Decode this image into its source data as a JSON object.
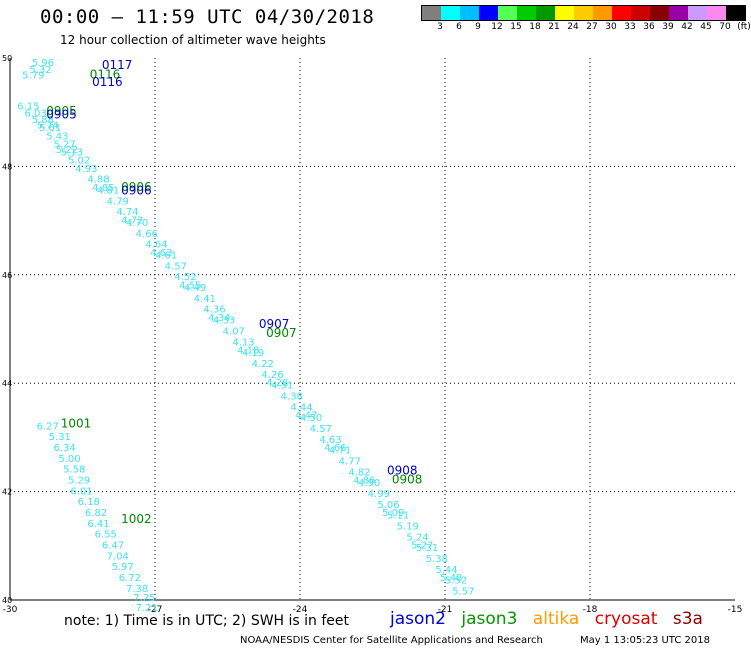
{
  "header": {
    "title": "00:00 – 11:59 UTC 04/30/2018",
    "subtitle": "12 hour collection of altimeter wave heights"
  },
  "legend": {
    "colors": [
      "#7f7f7f",
      "#00ffff",
      "#00bfff",
      "#0000ff",
      "#55ff55",
      "#00cc00",
      "#009900",
      "#ffff00",
      "#ffcc00",
      "#ff9900",
      "#ff0000",
      "#cc0000",
      "#880000",
      "#9900aa",
      "#cc99ff",
      "#ff88ee",
      "#000000"
    ],
    "ticks": [
      "3",
      "6",
      "9",
      "12",
      "15",
      "18",
      "21",
      "24",
      "27",
      "30",
      "33",
      "36",
      "39",
      "42",
      "45",
      "70",
      "(ft)"
    ]
  },
  "chart_data": {
    "type": "scatter",
    "title": "00:00 – 11:59 UTC 04/30/2018",
    "subtitle": "12 hour collection of altimeter wave heights",
    "xlim": [
      -30,
      -15
    ],
    "ylim": [
      40,
      50
    ],
    "x_ticks": [
      "-30",
      "-27",
      "-24",
      "-21",
      "-18",
      "-15"
    ],
    "y_ticks": [
      "40",
      "42",
      "44",
      "46",
      "48",
      "50"
    ],
    "grid": true,
    "point_color": "#3ee3f0",
    "series": [
      {
        "name": "track_main",
        "points": [
          {
            "lon": -29.55,
            "lat": 49.85,
            "v": "5.96"
          },
          {
            "lon": -29.6,
            "lat": 49.72,
            "v": "5.32"
          },
          {
            "lon": -29.75,
            "lat": 49.62,
            "v": "5.79"
          },
          {
            "lon": -29.85,
            "lat": 49.05,
            "v": "6.15"
          },
          {
            "lon": -29.7,
            "lat": 48.92,
            "v": "6.03"
          },
          {
            "lon": -29.55,
            "lat": 48.8,
            "v": "5.88"
          },
          {
            "lon": -29.4,
            "lat": 48.65,
            "v": "5.61"
          },
          {
            "lon": -29.25,
            "lat": 48.5,
            "v": "5.43"
          },
          {
            "lon": -29.1,
            "lat": 48.35,
            "v": "5.27"
          },
          {
            "lon": -28.95,
            "lat": 48.2,
            "v": "5.13"
          },
          {
            "lon": -28.8,
            "lat": 48.05,
            "v": "5.02"
          },
          {
            "lon": -28.65,
            "lat": 47.9,
            "v": "4.93"
          },
          {
            "lon": -28.4,
            "lat": 47.7,
            "v": "4.88"
          },
          {
            "lon": -28.2,
            "lat": 47.5,
            "v": "4.81"
          },
          {
            "lon": -28.0,
            "lat": 47.3,
            "v": "4.79"
          },
          {
            "lon": -27.8,
            "lat": 47.1,
            "v": "4.74"
          },
          {
            "lon": -27.6,
            "lat": 46.9,
            "v": "4.70"
          },
          {
            "lon": -27.4,
            "lat": 46.7,
            "v": "4.66"
          },
          {
            "lon": -27.2,
            "lat": 46.5,
            "v": "4.64"
          },
          {
            "lon": -27.0,
            "lat": 46.3,
            "v": "4.61"
          },
          {
            "lon": -26.8,
            "lat": 46.1,
            "v": "4.57"
          },
          {
            "lon": -26.6,
            "lat": 45.9,
            "v": "4.52"
          },
          {
            "lon": -26.4,
            "lat": 45.7,
            "v": "4.49"
          },
          {
            "lon": -26.2,
            "lat": 45.5,
            "v": "4.41"
          },
          {
            "lon": -26.0,
            "lat": 45.3,
            "v": "4.36"
          },
          {
            "lon": -25.8,
            "lat": 45.1,
            "v": "4.33"
          },
          {
            "lon": -25.6,
            "lat": 44.9,
            "v": "4.07"
          },
          {
            "lon": -25.4,
            "lat": 44.7,
            "v": "4.13"
          },
          {
            "lon": -25.2,
            "lat": 44.5,
            "v": "4.19"
          },
          {
            "lon": -25.0,
            "lat": 44.3,
            "v": "4.22"
          },
          {
            "lon": -24.8,
            "lat": 44.1,
            "v": "4.26"
          },
          {
            "lon": -24.6,
            "lat": 43.9,
            "v": "4.31"
          },
          {
            "lon": -24.4,
            "lat": 43.7,
            "v": "4.38"
          },
          {
            "lon": -24.2,
            "lat": 43.5,
            "v": "4.44"
          },
          {
            "lon": -24.0,
            "lat": 43.3,
            "v": "4.50"
          },
          {
            "lon": -23.8,
            "lat": 43.1,
            "v": "4.57"
          },
          {
            "lon": -23.6,
            "lat": 42.9,
            "v": "4.63"
          },
          {
            "lon": -23.4,
            "lat": 42.7,
            "v": "4.71"
          },
          {
            "lon": -23.2,
            "lat": 42.5,
            "v": "4.77"
          },
          {
            "lon": -23.0,
            "lat": 42.3,
            "v": "4.82"
          },
          {
            "lon": -22.8,
            "lat": 42.1,
            "v": "4.90"
          },
          {
            "lon": -22.6,
            "lat": 41.9,
            "v": "4.99"
          },
          {
            "lon": -22.4,
            "lat": 41.7,
            "v": "5.06"
          },
          {
            "lon": -22.2,
            "lat": 41.5,
            "v": "5.11"
          },
          {
            "lon": -22.0,
            "lat": 41.3,
            "v": "5.19"
          },
          {
            "lon": -21.8,
            "lat": 41.1,
            "v": "5.24"
          },
          {
            "lon": -21.6,
            "lat": 40.9,
            "v": "5.31"
          },
          {
            "lon": -21.4,
            "lat": 40.7,
            "v": "5.38"
          },
          {
            "lon": -21.2,
            "lat": 40.5,
            "v": "5.44"
          },
          {
            "lon": -21.0,
            "lat": 40.3,
            "v": "5.52"
          },
          {
            "lon": -20.85,
            "lat": 40.1,
            "v": "5.57"
          }
        ]
      },
      {
        "name": "track_main_b",
        "points": [
          {
            "lon": -29.45,
            "lat": 48.7,
            "v": "5.74"
          },
          {
            "lon": -29.05,
            "lat": 48.25,
            "v": "5.22"
          },
          {
            "lon": -28.3,
            "lat": 47.55,
            "v": "4.85"
          },
          {
            "lon": -27.7,
            "lat": 46.95,
            "v": "4.72"
          },
          {
            "lon": -27.1,
            "lat": 46.35,
            "v": "4.63"
          },
          {
            "lon": -26.5,
            "lat": 45.75,
            "v": "4.55"
          },
          {
            "lon": -25.9,
            "lat": 45.15,
            "v": "4.34"
          },
          {
            "lon": -25.3,
            "lat": 44.55,
            "v": "4.18"
          },
          {
            "lon": -24.7,
            "lat": 43.95,
            "v": "4.28"
          },
          {
            "lon": -24.1,
            "lat": 43.35,
            "v": "4.47"
          },
          {
            "lon": -23.5,
            "lat": 42.75,
            "v": "4.66"
          },
          {
            "lon": -22.9,
            "lat": 42.15,
            "v": "4.86"
          },
          {
            "lon": -22.3,
            "lat": 41.55,
            "v": "5.09"
          },
          {
            "lon": -21.7,
            "lat": 40.95,
            "v": "5.27"
          },
          {
            "lon": -21.1,
            "lat": 40.35,
            "v": "5.48"
          }
        ]
      },
      {
        "name": "track_west",
        "points": [
          {
            "lon": -29.45,
            "lat": 43.15,
            "v": "6.27"
          },
          {
            "lon": -29.2,
            "lat": 42.95,
            "v": "5.31"
          },
          {
            "lon": -29.1,
            "lat": 42.75,
            "v": "6.34"
          },
          {
            "lon": -29.0,
            "lat": 42.55,
            "v": "5.00"
          },
          {
            "lon": -28.9,
            "lat": 42.35,
            "v": "5.58"
          },
          {
            "lon": -28.8,
            "lat": 42.15,
            "v": "5.29"
          },
          {
            "lon": -28.75,
            "lat": 41.95,
            "v": "6.01"
          },
          {
            "lon": -28.6,
            "lat": 41.75,
            "v": "6.18"
          },
          {
            "lon": -28.45,
            "lat": 41.55,
            "v": "6.82"
          },
          {
            "lon": -28.4,
            "lat": 41.35,
            "v": "6.41"
          },
          {
            "lon": -28.25,
            "lat": 41.15,
            "v": "6.55"
          },
          {
            "lon": -28.1,
            "lat": 40.95,
            "v": "6.47"
          },
          {
            "lon": -28.0,
            "lat": 40.75,
            "v": "7.04"
          },
          {
            "lon": -27.9,
            "lat": 40.55,
            "v": "5.97"
          },
          {
            "lon": -27.75,
            "lat": 40.35,
            "v": "6.72"
          },
          {
            "lon": -27.6,
            "lat": 40.15,
            "v": "7.38"
          },
          {
            "lon": -27.45,
            "lat": 39.98,
            "v": "7.25"
          },
          {
            "lon": -27.4,
            "lat": 39.8,
            "v": "7.21"
          }
        ]
      }
    ],
    "annotations": [
      {
        "text": "0117",
        "lon": -28.1,
        "lat": 49.8,
        "color": "#0000cc"
      },
      {
        "text": "0116",
        "lon": -28.35,
        "lat": 49.62,
        "color": "#008800"
      },
      {
        "text": "0116",
        "lon": -28.3,
        "lat": 49.48,
        "color": "#0000cc"
      },
      {
        "text": "0905",
        "lon": -29.25,
        "lat": 48.95,
        "color": "#008800"
      },
      {
        "text": "0905",
        "lon": -29.25,
        "lat": 48.88,
        "color": "#0000cc"
      },
      {
        "text": "0906",
        "lon": -27.7,
        "lat": 47.55,
        "color": "#008800"
      },
      {
        "text": "0906",
        "lon": -27.7,
        "lat": 47.48,
        "color": "#0000cc"
      },
      {
        "text": "0907",
        "lon": -24.85,
        "lat": 45.02,
        "color": "#0000cc"
      },
      {
        "text": "0907",
        "lon": -24.7,
        "lat": 44.85,
        "color": "#008800"
      },
      {
        "text": "0908",
        "lon": -22.2,
        "lat": 42.32,
        "color": "#0000cc"
      },
      {
        "text": "0908",
        "lon": -22.1,
        "lat": 42.15,
        "color": "#008800"
      },
      {
        "text": "1001",
        "lon": -28.95,
        "lat": 43.18,
        "color": "#008800"
      },
      {
        "text": "1002",
        "lon": -27.7,
        "lat": 41.42,
        "color": "#008800"
      }
    ]
  },
  "footer": {
    "note": "note:  1) Time is in UTC;  2) SWH is in feet",
    "satellites": [
      {
        "label": "jason2",
        "color": "#0000dd"
      },
      {
        "label": "jason3",
        "color": "#009900"
      },
      {
        "label": "altika",
        "color": "#ff9900"
      },
      {
        "label": "cryosat",
        "color": "#dd0000"
      },
      {
        "label": "s3a",
        "color": "#880000"
      }
    ],
    "credit": "NOAA/NESDIS Center for Satellite Applications and Research",
    "timestamp": "May  1 13:05:23 UTC 2018"
  }
}
